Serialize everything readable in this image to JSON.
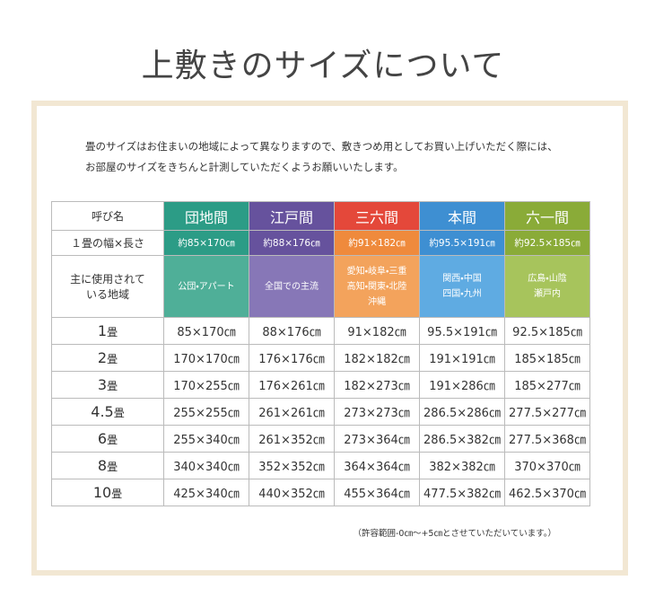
{
  "title": "上敷きのサイズについて",
  "intro": [
    "畳のサイズはお住まいの地域によって異なりますので、敷きつめ用としてお買い上げいただく際には、",
    "お部屋のサイズをきちんと計測していただくようお願いいたします。"
  ],
  "table": {
    "header": {
      "label": "呼び名",
      "columns": [
        "団地間",
        "江戸間",
        "三六間",
        "本間",
        "六一間"
      ]
    },
    "size_row": {
      "label": "１畳の幅×長さ",
      "cells": [
        "約85×170㎝",
        "約88×176㎝",
        "約91×182㎝",
        "約95.5×191㎝",
        "約92.5×185㎝"
      ]
    },
    "region_row": {
      "label": [
        "主に使用されて",
        "いる地域"
      ],
      "cells": [
        [
          "公団・アパート"
        ],
        [
          "全国での主流"
        ],
        [
          "愛知・岐阜・三重",
          "高知・関東・北陸",
          "沖縄"
        ],
        [
          "関西・中国",
          "四国・九州"
        ],
        [
          "広島・山陰",
          "瀬戸内"
        ]
      ]
    },
    "rows": [
      {
        "num": "1",
        "unit": "畳",
        "cells": [
          "85×170㎝",
          "88×176㎝",
          "91×182㎝",
          "95.5×191㎝",
          "92.5×185㎝"
        ]
      },
      {
        "num": "2",
        "unit": "畳",
        "cells": [
          "170×170㎝",
          "176×176㎝",
          "182×182㎝",
          "191×191㎝",
          "185×185㎝"
        ]
      },
      {
        "num": "3",
        "unit": "畳",
        "cells": [
          "170×255㎝",
          "176×261㎝",
          "182×273㎝",
          "191×286㎝",
          "185×277㎝"
        ]
      },
      {
        "num": "4.5",
        "unit": "畳",
        "cells": [
          "255×255㎝",
          "261×261㎝",
          "273×273㎝",
          "286.5×286㎝",
          "277.5×277㎝"
        ]
      },
      {
        "num": "6",
        "unit": "畳",
        "cells": [
          "255×340㎝",
          "261×352㎝",
          "273×364㎝",
          "286.5×382㎝",
          "277.5×368㎝"
        ]
      },
      {
        "num": "8",
        "unit": "畳",
        "cells": [
          "340×340㎝",
          "352×352㎝",
          "364×364㎝",
          "382×382㎝",
          "370×370㎝"
        ]
      },
      {
        "num": "10",
        "unit": "畳",
        "cells": [
          "425×340㎝",
          "440×352㎝",
          "455×364㎝",
          "477.5×382㎝",
          "462.5×370㎝"
        ]
      }
    ]
  },
  "footnote": "（許容範囲-0㎝～+5㎝とさせていただいています。）"
}
